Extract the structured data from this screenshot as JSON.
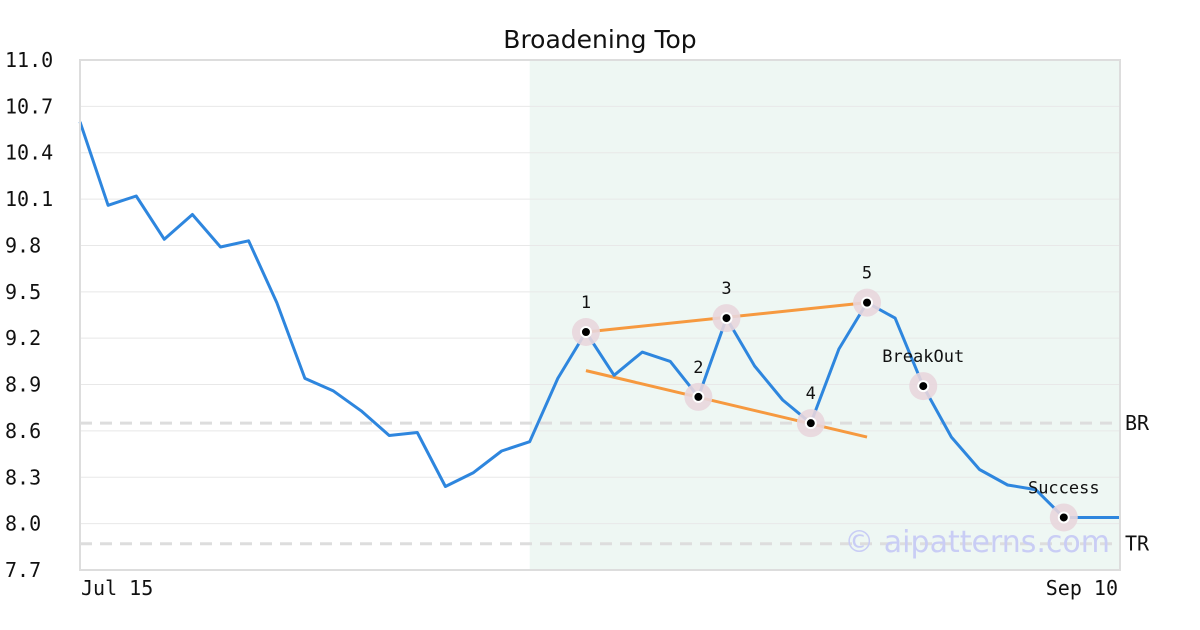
{
  "chart_data": {
    "type": "line",
    "title": "Broadening Top",
    "ylim": [
      7.7,
      11.0
    ],
    "yticks": [
      "11.0",
      "10.7",
      "10.4",
      "10.1",
      "9.8",
      "9.5",
      "9.2",
      "8.9",
      "8.6",
      "8.3",
      "8.0",
      "7.7"
    ],
    "x_labels": [
      "Jul 15",
      "Sep 10"
    ],
    "grid": true,
    "series": [
      {
        "values": [
          10.6,
          10.06,
          10.12,
          9.84,
          10.0,
          9.79,
          9.83,
          9.43,
          8.94,
          8.86,
          8.73,
          8.57,
          8.59,
          8.24,
          8.33,
          8.47,
          8.53,
          8.94,
          9.24,
          8.96,
          9.11,
          9.05,
          8.82,
          9.33,
          9.02,
          8.8,
          8.65,
          9.13,
          9.43,
          9.33,
          8.89,
          8.56,
          8.35,
          8.25,
          8.22,
          8.04,
          8.04,
          8.04
        ],
        "color": "#2e86de"
      }
    ],
    "reference_lines": [
      {
        "label": "BR",
        "value": 8.65
      },
      {
        "label": "TR",
        "value": 7.87
      }
    ],
    "highlight_range": {
      "from_index": 16,
      "to_index": 37,
      "color": "#eef7f3"
    },
    "trendlines": [
      {
        "from": [
          18,
          9.24
        ],
        "to": [
          28,
          9.43
        ],
        "color": "#f6993f"
      },
      {
        "from": [
          18,
          8.99
        ],
        "to": [
          28,
          8.56
        ],
        "color": "#f6993f"
      }
    ],
    "points": [
      {
        "label": "1",
        "index": 18,
        "value": 9.24
      },
      {
        "label": "2",
        "index": 22,
        "value": 8.82
      },
      {
        "label": "3",
        "index": 23,
        "value": 9.33
      },
      {
        "label": "4",
        "index": 26,
        "value": 8.65
      },
      {
        "label": "5",
        "index": 28,
        "value": 9.43
      },
      {
        "label": "BreakOut",
        "index": 30,
        "value": 8.89
      },
      {
        "label": "Success",
        "index": 35,
        "value": 8.04
      }
    ],
    "watermark": "© aipatterns.com"
  }
}
